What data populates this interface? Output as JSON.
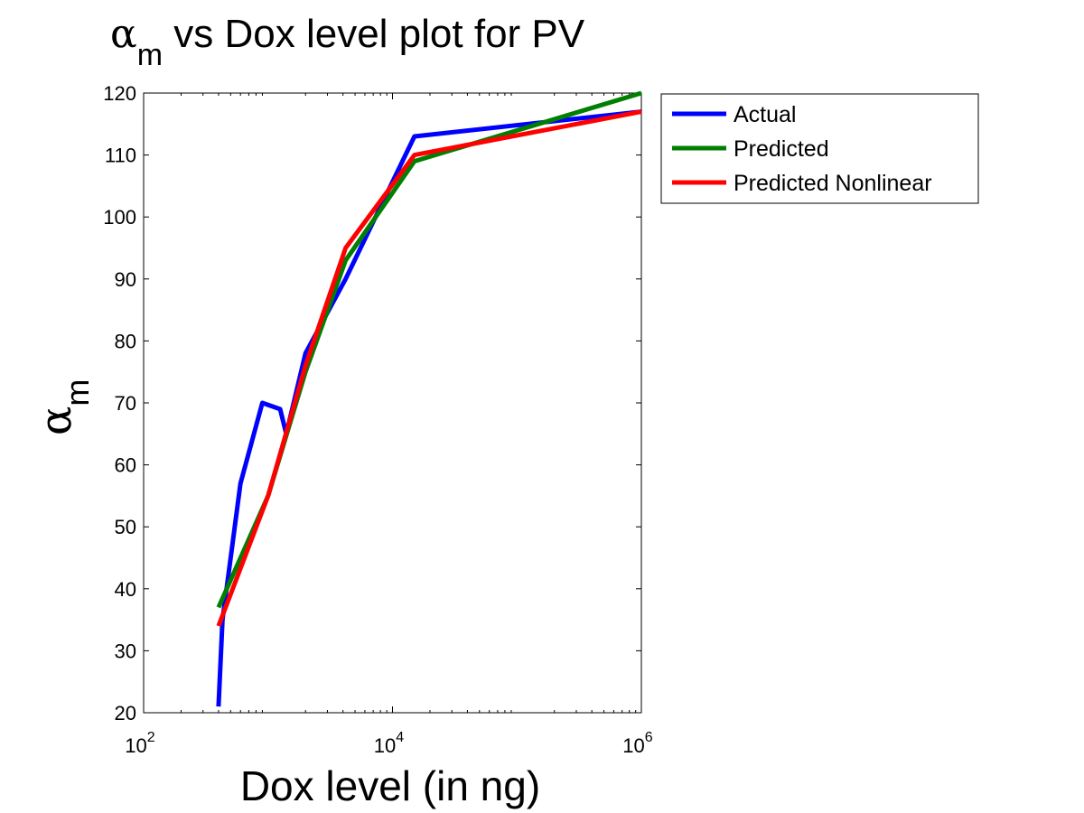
{
  "chart_data": {
    "type": "line",
    "title": {
      "symbol": "α",
      "subscript": "m",
      "text": " vs Dox level plot for PV"
    },
    "xlabel": "Dox level (in ng)",
    "ylabel": {
      "symbol": "α",
      "subscript": "m"
    },
    "xscale": "log",
    "xlim": [
      100,
      1000000
    ],
    "ylim": [
      20,
      120
    ],
    "xticks": [
      {
        "value": 100,
        "base": "10",
        "exp": "2"
      },
      {
        "value": 10000,
        "base": "10",
        "exp": "4"
      },
      {
        "value": 1000000,
        "base": "10",
        "exp": "6"
      }
    ],
    "yticks": [
      "20",
      "30",
      "40",
      "50",
      "60",
      "70",
      "80",
      "90",
      "100",
      "110",
      "120"
    ],
    "grid": false,
    "legend": "outside-top-right",
    "series": [
      {
        "name": "Actual",
        "color": "#0000ff",
        "x": [
          400,
          430,
          600,
          900,
          1250,
          1400,
          2000,
          4200,
          15000,
          1000000
        ],
        "y": [
          21,
          35,
          57,
          70,
          69,
          65,
          78,
          90,
          113,
          117
        ]
      },
      {
        "name": "Predicted",
        "color": "#007f00",
        "x": [
          400,
          1000,
          2000,
          4200,
          15000,
          1000000
        ],
        "y": [
          37,
          55,
          75,
          93,
          109,
          120
        ]
      },
      {
        "name": "Predicted Nonlinear",
        "color": "#ff0000",
        "x": [
          400,
          1000,
          2000,
          4200,
          15000,
          1000000
        ],
        "y": [
          34,
          55,
          76,
          95,
          110,
          117
        ]
      }
    ]
  }
}
